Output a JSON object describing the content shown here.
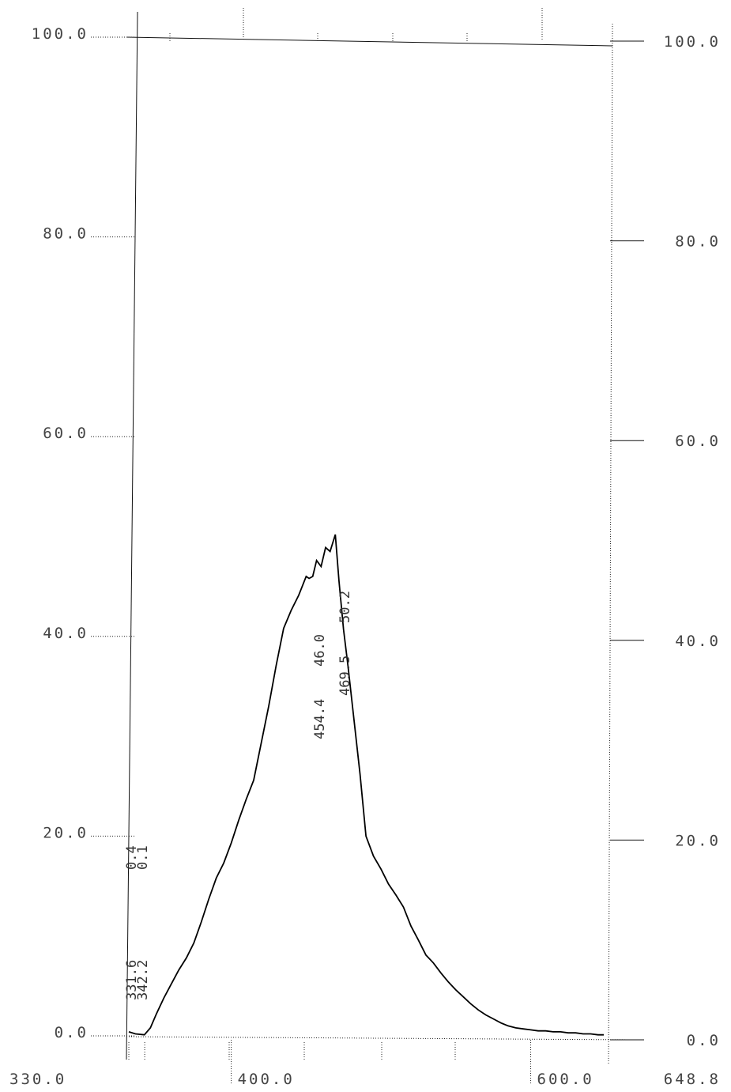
{
  "chart_data": {
    "type": "line",
    "title": "",
    "xlabel": "",
    "ylabel": "",
    "xlim": [
      330.0,
      648.8
    ],
    "ylim": [
      0.0,
      100.0
    ],
    "grid": false,
    "x_tick_labels": [
      {
        "value": 330.0,
        "label": "330.0"
      },
      {
        "value": 400.0,
        "label": "400.0"
      },
      {
        "value": 600.0,
        "label": "600.0"
      },
      {
        "value": 648.8,
        "label": "648.8"
      }
    ],
    "y_tick_labels_left": [
      {
        "value": 0,
        "label": "0.0"
      },
      {
        "value": 20,
        "label": "20.0"
      },
      {
        "value": 40,
        "label": "40.0"
      },
      {
        "value": 60,
        "label": "60.0"
      },
      {
        "value": 80,
        "label": "80.0"
      },
      {
        "value": 100,
        "label": "100.0"
      }
    ],
    "y_tick_labels_right": [
      {
        "value": 0,
        "label": "0.0"
      },
      {
        "value": 20,
        "label": "20.0"
      },
      {
        "value": 40,
        "label": "40.0"
      },
      {
        "value": 60,
        "label": "60.0"
      },
      {
        "value": 80,
        "label": "80.0"
      },
      {
        "value": 100,
        "label": "100.0"
      }
    ],
    "peak_annotations": [
      {
        "x": 331.6,
        "y": 0.4,
        "labels": [
          "331.6",
          "0.4"
        ]
      },
      {
        "x": 342.2,
        "y": 0.1,
        "labels": [
          "342.2",
          "0.1"
        ]
      },
      {
        "x": 454.4,
        "y": 46.0,
        "labels": [
          "454.4",
          "46.0"
        ]
      },
      {
        "x": 469.5,
        "y": 50.2,
        "labels": [
          "469.5",
          "50.2"
        ]
      }
    ],
    "series": [
      {
        "x": [
          331.6,
          336,
          342,
          346,
          350,
          355,
          360,
          365,
          370,
          375,
          380,
          385,
          390,
          395,
          400,
          405,
          410,
          415,
          420,
          425,
          430,
          435,
          440,
          445,
          450,
          452,
          454.4,
          457,
          460,
          463,
          466,
          469.5,
          472,
          475,
          478,
          482,
          486,
          490,
          495,
          500,
          505,
          510,
          515,
          520,
          525,
          530,
          535,
          540,
          545,
          550,
          555,
          560,
          565,
          570,
          575,
          580,
          585,
          590,
          595,
          600,
          605,
          610,
          615,
          620,
          625,
          630,
          635,
          640,
          645,
          648.8
        ],
        "y": [
          0.4,
          0.2,
          0.1,
          0.8,
          2.2,
          3.8,
          5.2,
          6.6,
          7.8,
          9.3,
          11.4,
          13.7,
          15.8,
          17.3,
          19.3,
          21.6,
          23.7,
          25.6,
          29.3,
          33.0,
          37.1,
          40.8,
          42.6,
          44.1,
          46.0,
          45.8,
          46.0,
          47.6,
          47.0,
          48.9,
          48.5,
          50.2,
          45.5,
          40.7,
          37.0,
          31.6,
          26.2,
          20.0,
          18.0,
          16.7,
          15.2,
          14.1,
          12.9,
          11.0,
          9.6,
          8.1,
          7.3,
          6.3,
          5.4,
          4.6,
          3.9,
          3.2,
          2.6,
          2.1,
          1.7,
          1.3,
          1.0,
          0.8,
          0.7,
          0.6,
          0.5,
          0.5,
          0.4,
          0.4,
          0.3,
          0.3,
          0.2,
          0.2,
          0.1,
          0.1
        ]
      }
    ]
  }
}
